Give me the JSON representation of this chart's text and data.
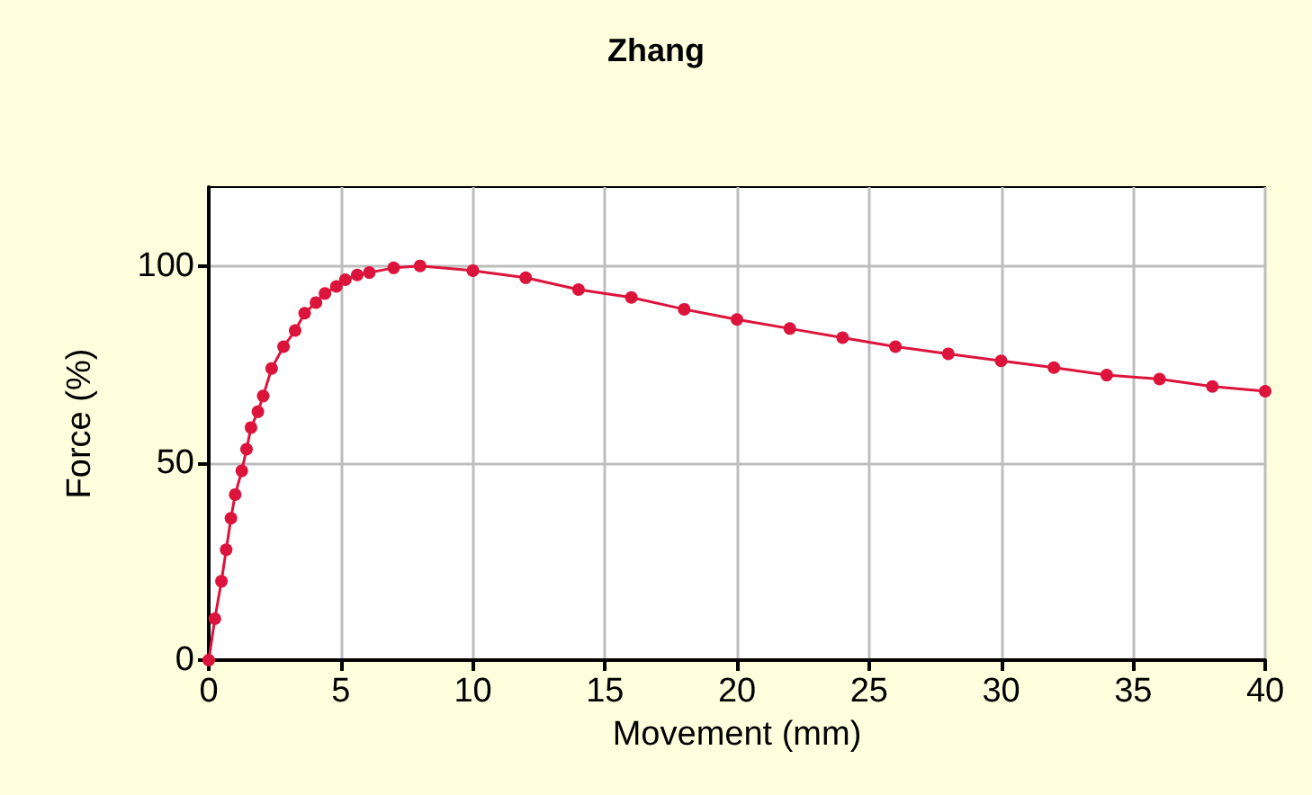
{
  "chart_data": {
    "type": "line",
    "title": "Zhang",
    "xlabel": "Movement (mm)",
    "ylabel": "Force (%)",
    "xlim": [
      0,
      40
    ],
    "xticks": [
      0,
      5,
      10,
      15,
      20,
      25,
      30,
      35,
      40
    ],
    "ylim": [
      0,
      120
    ],
    "yticks": [
      0,
      50,
      100
    ],
    "grid": true,
    "marker": "circle",
    "line_style": "solid",
    "series": [
      {
        "color": "#dc143c",
        "x": [
          0,
          0.23,
          0.48,
          0.66,
          0.84,
          1.0,
          1.25,
          1.43,
          1.6,
          1.86,
          2.06,
          2.38,
          2.83,
          3.27,
          3.63,
          4.06,
          4.4,
          4.83,
          5.17,
          5.62,
          6.08,
          7.0,
          8.0,
          10,
          12,
          14,
          16,
          18,
          20,
          22,
          24,
          26,
          28,
          30,
          32,
          34,
          36,
          38,
          40
        ],
        "values": [
          0,
          10.5,
          20,
          28,
          36,
          42,
          48,
          53.5,
          59,
          63,
          67,
          74,
          79.5,
          83.6,
          88,
          90.7,
          93,
          94.8,
          96.5,
          97.7,
          98.3,
          99.5,
          100,
          98.8,
          97,
          94,
          92,
          89,
          86.4,
          84.1,
          81.8,
          79.5,
          77.7,
          75.9,
          74.2,
          72.3,
          71.3,
          69.4,
          68.2
        ]
      }
    ]
  }
}
